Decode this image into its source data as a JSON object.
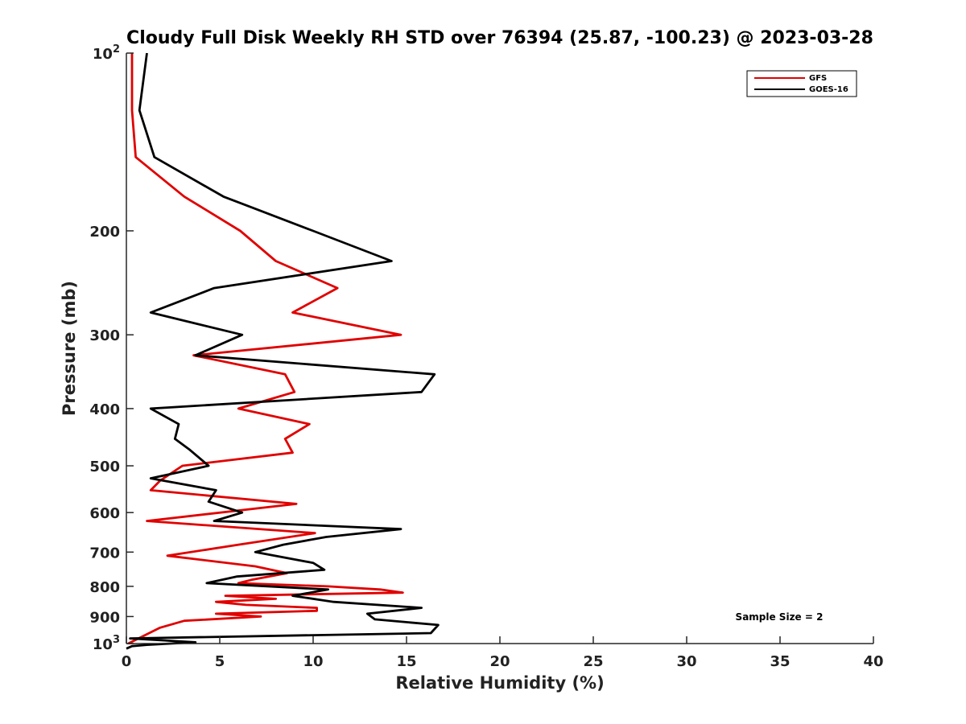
{
  "chart_data": {
    "type": "line",
    "title": "Cloudy Full Disk Weekly RH STD over 76394 (25.87, -100.23) @ 2023-03-28",
    "xlabel": "Relative Humidity (%)",
    "ylabel": "Pressure (mb)",
    "xlim": [
      0,
      40
    ],
    "ylim": [
      1000,
      100
    ],
    "y_scale": "log",
    "y_reversed": true,
    "grid": false,
    "legend_position": "top-right",
    "x_ticks": [
      "0",
      "5",
      "10",
      "15",
      "20",
      "25",
      "30",
      "35",
      "40"
    ],
    "y_ticks": [
      {
        "value": 100,
        "base": "10",
        "exp": "2"
      },
      {
        "value": 200,
        "label": "200"
      },
      {
        "value": 300,
        "label": "300"
      },
      {
        "value": 400,
        "label": "400"
      },
      {
        "value": 500,
        "label": "500"
      },
      {
        "value": 600,
        "label": "600"
      },
      {
        "value": 700,
        "label": "700"
      },
      {
        "value": 800,
        "label": "800"
      },
      {
        "value": 900,
        "label": "900"
      },
      {
        "value": 1000,
        "base": "10",
        "exp": "3"
      }
    ],
    "series": [
      {
        "name": "GFS",
        "color": "#e00000",
        "points": [
          [
            0.3,
            100
          ],
          [
            0.3,
            125
          ],
          [
            0.5,
            150
          ],
          [
            3.1,
            175
          ],
          [
            6.1,
            200
          ],
          [
            8.0,
            225
          ],
          [
            11.3,
            250
          ],
          [
            8.9,
            275
          ],
          [
            14.7,
            300
          ],
          [
            3.6,
            325
          ],
          [
            8.5,
            350
          ],
          [
            9.0,
            375
          ],
          [
            6.0,
            400
          ],
          [
            9.8,
            425
          ],
          [
            8.5,
            450
          ],
          [
            8.9,
            475
          ],
          [
            3.0,
            500
          ],
          [
            1.8,
            530
          ],
          [
            1.3,
            550
          ],
          [
            9.1,
            580
          ],
          [
            1.1,
            620
          ],
          [
            10.1,
            650
          ],
          [
            6.0,
            680
          ],
          [
            2.2,
            710
          ],
          [
            6.9,
            740
          ],
          [
            8.6,
            760
          ],
          [
            6.7,
            780
          ],
          [
            6.0,
            790
          ],
          [
            10.8,
            800
          ],
          [
            13.6,
            810
          ],
          [
            14.8,
            820
          ],
          [
            5.3,
            830
          ],
          [
            8.0,
            840
          ],
          [
            4.8,
            850
          ],
          [
            6.4,
            860
          ],
          [
            10.2,
            870
          ],
          [
            10.2,
            880
          ],
          [
            4.8,
            890
          ],
          [
            7.2,
            900
          ],
          [
            3.1,
            915
          ],
          [
            1.8,
            940
          ],
          [
            0.1,
            1000
          ]
        ]
      },
      {
        "name": "GOES-16",
        "color": "#000000",
        "points": [
          [
            1.1,
            100
          ],
          [
            0.7,
            125
          ],
          [
            1.5,
            150
          ],
          [
            5.2,
            175
          ],
          [
            10.0,
            200
          ],
          [
            14.2,
            225
          ],
          [
            4.7,
            250
          ],
          [
            1.3,
            275
          ],
          [
            6.2,
            300
          ],
          [
            3.7,
            325
          ],
          [
            16.5,
            350
          ],
          [
            15.8,
            375
          ],
          [
            1.3,
            400
          ],
          [
            2.8,
            425
          ],
          [
            2.6,
            450
          ],
          [
            3.4,
            470
          ],
          [
            4.4,
            500
          ],
          [
            1.3,
            525
          ],
          [
            4.8,
            550
          ],
          [
            4.4,
            575
          ],
          [
            6.2,
            600
          ],
          [
            4.7,
            620
          ],
          [
            14.7,
            640
          ],
          [
            10.7,
            660
          ],
          [
            8.4,
            680
          ],
          [
            6.9,
            700
          ],
          [
            10.0,
            730
          ],
          [
            10.6,
            750
          ],
          [
            5.9,
            770
          ],
          [
            4.3,
            790
          ],
          [
            10.8,
            810
          ],
          [
            8.9,
            830
          ],
          [
            11.1,
            850
          ],
          [
            15.8,
            870
          ],
          [
            12.9,
            890
          ],
          [
            13.3,
            910
          ],
          [
            16.7,
            930
          ],
          [
            16.3,
            960
          ],
          [
            0.2,
            980
          ],
          [
            3.7,
            995
          ],
          [
            1.1,
            1005
          ],
          [
            0.3,
            1010
          ],
          [
            0.0,
            1020
          ]
        ]
      }
    ],
    "annotations": [
      "Sample Size = 2"
    ]
  }
}
